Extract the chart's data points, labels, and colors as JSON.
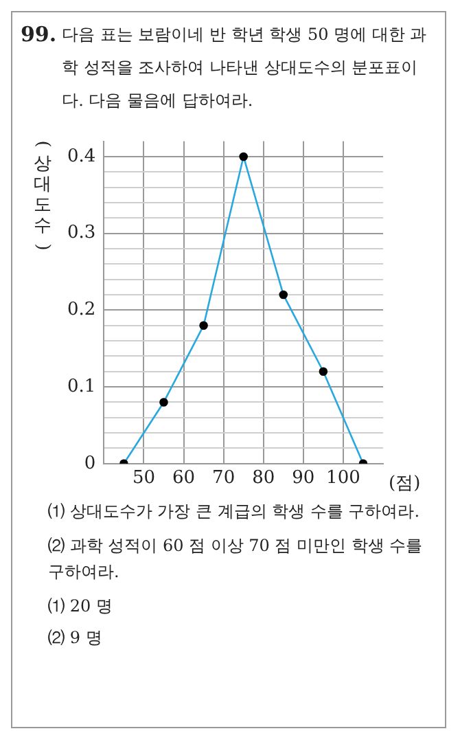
{
  "chart_data": {
    "type": "line",
    "title": "99. 다음 표는 보람이네 반 학년 학생 50 명에 대한 과학 성적을 조사하여 나타낸 상대도수의 분포표이다. 다음 물음에 답하여라.",
    "ylabel": "(상대도수)",
    "xlabel": "(점)",
    "x": [
      45,
      55,
      65,
      75,
      85,
      95,
      105
    ],
    "series": [
      {
        "color": "#29a8e0",
        "values": [
          0,
          0.08,
          0.18,
          0.4,
          0.22,
          0.12,
          0
        ]
      }
    ],
    "xlim": [
      40,
      110
    ],
    "xticks": [
      50,
      60,
      70,
      80,
      90,
      100
    ],
    "ylim": [
      0,
      0.42
    ],
    "yticks": [
      {
        "value": 0,
        "label": "0"
      },
      {
        "value": 0.02,
        "label": null
      },
      {
        "value": 0.04,
        "label": null
      },
      {
        "value": 0.06,
        "label": null
      },
      {
        "value": 0.08,
        "label": null
      },
      0.1,
      {
        "value": 0.12,
        "label": null
      },
      {
        "value": 0.14,
        "label": null
      },
      {
        "value": 0.16,
        "label": null
      },
      {
        "value": 0.18,
        "label": null
      },
      0.2,
      {
        "value": 0.22,
        "label": null
      },
      {
        "value": 0.24,
        "label": null
      },
      {
        "value": 0.26,
        "label": null
      },
      {
        "value": 0.28,
        "label": null
      },
      0.3,
      {
        "value": 0.32,
        "label": null
      },
      {
        "value": 0.34,
        "label": null
      },
      {
        "value": 0.36,
        "label": null
      },
      {
        "value": 0.38,
        "label": null
      },
      0.4
    ],
    "grid": true,
    "marker": "circle",
    "line_style": "solid",
    "legend": false,
    "annotations": [
      "⑴ 상대도수가 가장 큰 계급의 학생 수를 구하여라.",
      "⑵ 과학 성적이 60 점 이상 70 점 미만인 학생 수를 구하여라.",
      "⑴ 20 명",
      "⑵ 9 명"
    ]
  }
}
